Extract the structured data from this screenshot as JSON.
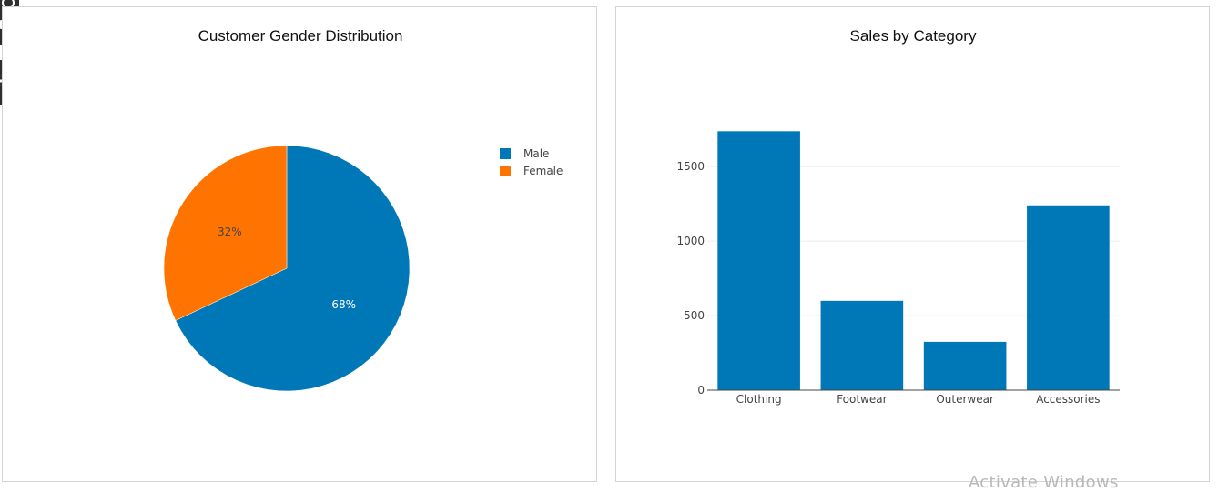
{
  "watermark": "Activate Windows",
  "modebar": {
    "buttons": [
      "camera-icon",
      "video-icon",
      "image-icon",
      "gear-icon"
    ]
  },
  "chart_data": [
    {
      "type": "pie",
      "title": "Customer Gender Distribution",
      "labels": [
        "Male",
        "Female"
      ],
      "values": [
        68,
        32
      ],
      "text": [
        "68%",
        "32%"
      ],
      "colors": [
        "#0077b6",
        "#ff7400"
      ],
      "text_colors": [
        "#ffffff",
        "#444444"
      ],
      "legend": {
        "placement": "right",
        "entries": [
          "Male",
          "Female"
        ]
      }
    },
    {
      "type": "bar",
      "title": "Sales by Category",
      "categories": [
        "Clothing",
        "Footwear",
        "Outerwear",
        "Accessories"
      ],
      "values": [
        1737,
        599,
        324,
        1240
      ],
      "color": "#0077b6",
      "ylim": [
        0,
        1800
      ],
      "yticks": [
        0,
        500,
        1000,
        1500
      ],
      "ytick_labels": [
        "0",
        "500",
        "1000",
        "1500"
      ],
      "grid": true,
      "xlabel": "",
      "ylabel": ""
    }
  ]
}
